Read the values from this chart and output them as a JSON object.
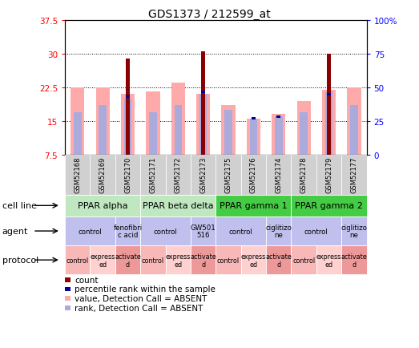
{
  "title": "GDS1373 / 212599_at",
  "samples": [
    "GSM52168",
    "GSM52169",
    "GSM52170",
    "GSM52171",
    "GSM52172",
    "GSM52173",
    "GSM52175",
    "GSM52176",
    "GSM52174",
    "GSM52178",
    "GSM52179",
    "GSM52177"
  ],
  "ylim_left": [
    7.5,
    37.5
  ],
  "ylim_right": [
    0,
    100
  ],
  "yticks_left": [
    7.5,
    15.0,
    22.5,
    30.0,
    37.5
  ],
  "ytick_labels_left": [
    "7.5",
    "15",
    "22.5",
    "30",
    "37.5"
  ],
  "ytick_labels_right": [
    "0",
    "25",
    "50",
    "75",
    "100%"
  ],
  "pink_bar_top": [
    22.5,
    22.5,
    21.0,
    21.5,
    23.5,
    21.0,
    18.5,
    15.5,
    16.5,
    19.5,
    22.0,
    22.5
  ],
  "dark_red_bar_top": [
    0,
    0,
    29.0,
    0,
    0,
    30.5,
    0,
    0,
    0,
    0,
    30.0,
    0
  ],
  "blue_sq_y": [
    0,
    0,
    20.5,
    0,
    0,
    21.5,
    0,
    15.5,
    16.0,
    0,
    21.0,
    0
  ],
  "light_blue_top": [
    17.0,
    18.5,
    20.0,
    17.0,
    18.5,
    21.0,
    17.5,
    15.5,
    16.0,
    17.0,
    21.5,
    18.5
  ],
  "has_dark_red": [
    false,
    false,
    true,
    false,
    false,
    true,
    false,
    false,
    false,
    false,
    true,
    false
  ],
  "has_blue_sq": [
    false,
    false,
    true,
    false,
    false,
    true,
    false,
    true,
    true,
    false,
    true,
    false
  ],
  "cell_lines": [
    {
      "label": "PPAR alpha",
      "span": [
        0,
        3
      ],
      "color": "#c0e8c0"
    },
    {
      "label": "PPAR beta delta",
      "span": [
        3,
        6
      ],
      "color": "#c0e8c0"
    },
    {
      "label": "PPAR gamma 1",
      "span": [
        6,
        9
      ],
      "color": "#44cc44"
    },
    {
      "label": "PPAR gamma 2",
      "span": [
        9,
        12
      ],
      "color": "#44cc44"
    }
  ],
  "agents": [
    {
      "label": "control",
      "span": [
        0,
        2
      ],
      "color": "#c0c0ee"
    },
    {
      "label": "fenofibri\nc acid",
      "span": [
        2,
        3
      ],
      "color": "#c0c0ee"
    },
    {
      "label": "control",
      "span": [
        3,
        5
      ],
      "color": "#c0c0ee"
    },
    {
      "label": "GW501\n516",
      "span": [
        5,
        6
      ],
      "color": "#c0c0ee"
    },
    {
      "label": "control",
      "span": [
        6,
        8
      ],
      "color": "#c0c0ee"
    },
    {
      "label": "ciglitizo\nne",
      "span": [
        8,
        9
      ],
      "color": "#c0c0ee"
    },
    {
      "label": "control",
      "span": [
        9,
        11
      ],
      "color": "#c0c0ee"
    },
    {
      "label": "ciglitizo\nne",
      "span": [
        11,
        12
      ],
      "color": "#c0c0ee"
    }
  ],
  "protocols": [
    {
      "label": "control",
      "span": [
        0,
        1
      ],
      "color": "#f8b8b8"
    },
    {
      "label": "express\ned",
      "span": [
        1,
        2
      ],
      "color": "#ffd0d0"
    },
    {
      "label": "activate\nd",
      "span": [
        2,
        3
      ],
      "color": "#ee9999"
    },
    {
      "label": "control",
      "span": [
        3,
        4
      ],
      "color": "#f8b8b8"
    },
    {
      "label": "express\ned",
      "span": [
        4,
        5
      ],
      "color": "#ffd0d0"
    },
    {
      "label": "activate\nd",
      "span": [
        5,
        6
      ],
      "color": "#ee9999"
    },
    {
      "label": "control",
      "span": [
        6,
        7
      ],
      "color": "#f8b8b8"
    },
    {
      "label": "express\ned",
      "span": [
        7,
        8
      ],
      "color": "#ffd0d0"
    },
    {
      "label": "activate\nd",
      "span": [
        8,
        9
      ],
      "color": "#ee9999"
    },
    {
      "label": "control",
      "span": [
        9,
        10
      ],
      "color": "#f8b8b8"
    },
    {
      "label": "express\ned",
      "span": [
        10,
        11
      ],
      "color": "#ffd0d0"
    },
    {
      "label": "activate\nd",
      "span": [
        11,
        12
      ],
      "color": "#ee9999"
    }
  ],
  "legend_colors": [
    "#990000",
    "#000099",
    "#ffaaaa",
    "#aaaadd"
  ],
  "legend_labels": [
    "count",
    "percentile rank within the sample",
    "value, Detection Call = ABSENT",
    "rank, Detection Call = ABSENT"
  ],
  "pink_color": "#ffaaaa",
  "dark_red_color": "#8b0000",
  "light_blue_color": "#aaaadd",
  "blue_sq_color": "#000099",
  "sample_bg_color": "#d0d0d0"
}
